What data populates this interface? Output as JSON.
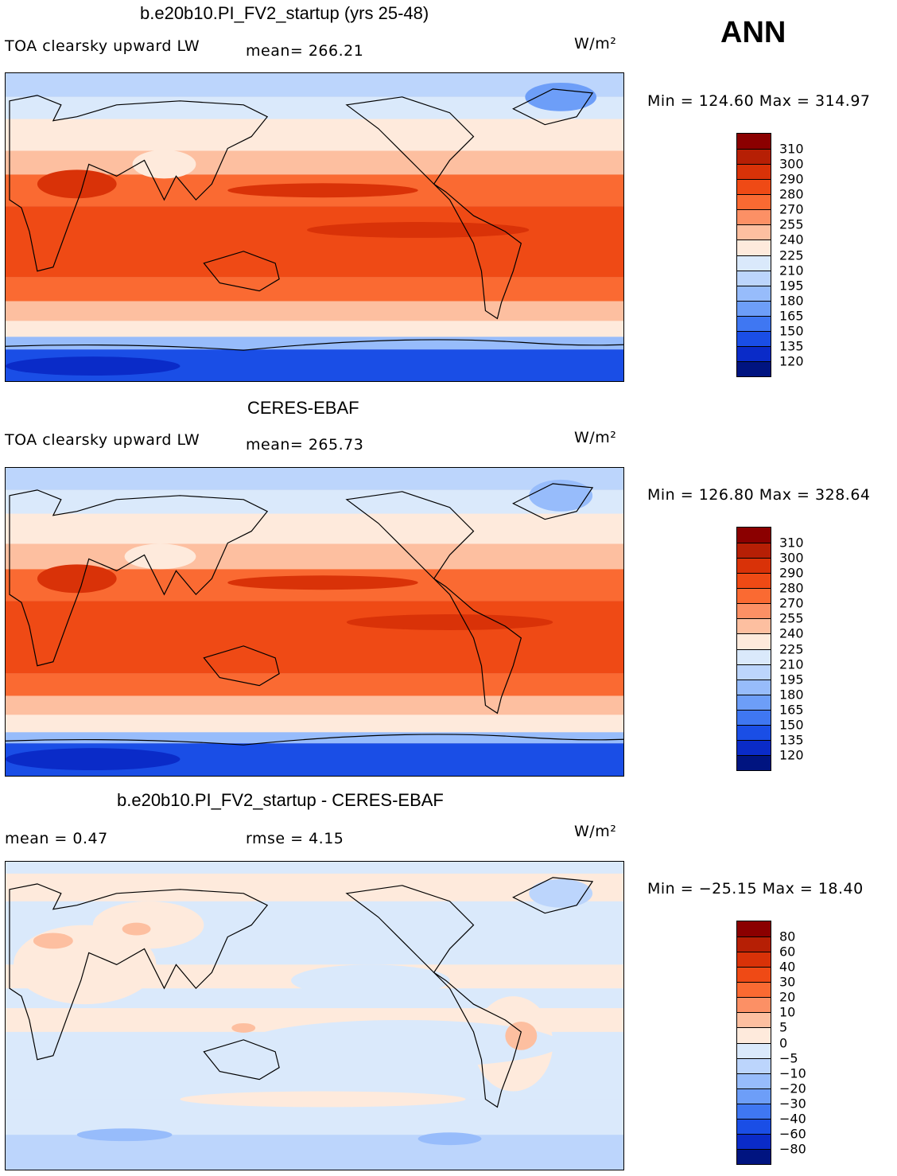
{
  "figure_label": "ANN",
  "units": "W/m²",
  "panels": [
    {
      "title": "b.e20b10.PI_FV2_startup (yrs 25-48)",
      "variable": "TOA clearsky upward LW",
      "stat_text": "mean=  266.21",
      "range_text": "Min = 124.60 Max = 314.97",
      "kind": "abs"
    },
    {
      "title": "CERES-EBAF",
      "variable": "TOA clearsky upward LW",
      "stat_text": "mean=  265.73",
      "range_text": "Min = 126.80 Max = 328.64",
      "kind": "abs"
    },
    {
      "title": "b.e20b10.PI_FV2_startup - CERES-EBAF",
      "variable": "mean =    0.47",
      "stat_text": "rmse =    4.15",
      "range_text": "Min = −25.15 Max =   18.40",
      "kind": "diff"
    }
  ],
  "colorbars": {
    "abs": {
      "levels": [
        "310",
        "300",
        "290",
        "280",
        "270",
        "255",
        "240",
        "225",
        "210",
        "195",
        "180",
        "165",
        "150",
        "135",
        "120"
      ],
      "colors": [
        "#8b0000",
        "#b61f05",
        "#d93208",
        "#ef4a15",
        "#fa6a32",
        "#fc9065",
        "#fdbfa0",
        "#feeadc",
        "#dae9fb",
        "#bcd5fc",
        "#97bcfb",
        "#6d9ef8",
        "#3f77f2",
        "#1a4ee6",
        "#0a2bc8",
        "#001480"
      ]
    },
    "diff": {
      "levels": [
        "80",
        "60",
        "40",
        "30",
        "20",
        "10",
        "5",
        "0",
        "−5",
        "−10",
        "−20",
        "−30",
        "−40",
        "−60",
        "−80"
      ],
      "colors": [
        "#8b0000",
        "#b61f05",
        "#d93208",
        "#ef4a15",
        "#fa6a32",
        "#fc9065",
        "#fdbfa0",
        "#feeadc",
        "#dae9fb",
        "#bcd5fc",
        "#97bcfb",
        "#6d9ef8",
        "#3f77f2",
        "#1a4ee6",
        "#0a2bc8",
        "#001480"
      ]
    }
  }
}
